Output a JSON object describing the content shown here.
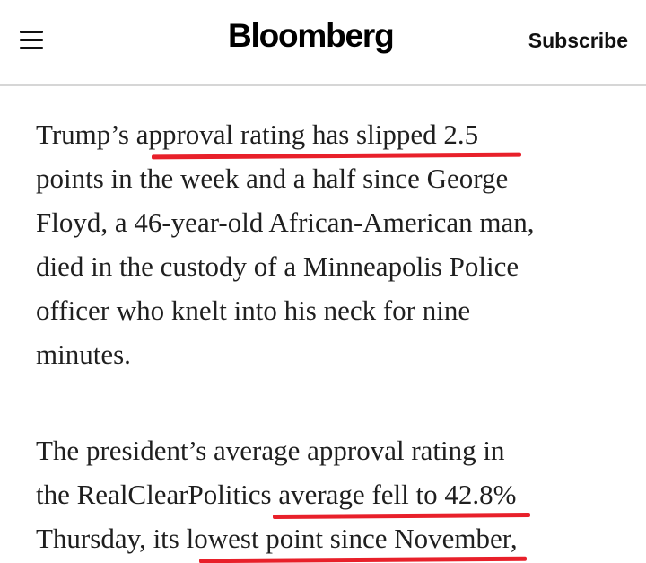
{
  "header": {
    "brand": "Bloomberg",
    "subscribe_label": "Subscribe",
    "menu_icon": "hamburger-menu-icon"
  },
  "article": {
    "paragraph1": {
      "l1_a": "Trump’s ap",
      "l1_hl": "proval rating has slipped 2.5",
      "l2": "points in the week and a half since George",
      "l3": "Floyd, a 46-year-old African-American man,",
      "l4": "died in the custody of a Minneapolis Police",
      "l5": "officer who knelt into his neck for nine",
      "l6": "minutes."
    },
    "paragraph2": {
      "l1": "The president’s average approval rating in",
      "l2_a": "the RealClearPolitics ",
      "l2_hl": "average fell to 42.8%",
      "l3_a": "Thursday, its lo",
      "l3_hl": "west point since November,"
    }
  },
  "annotation_color": "#e8202a"
}
